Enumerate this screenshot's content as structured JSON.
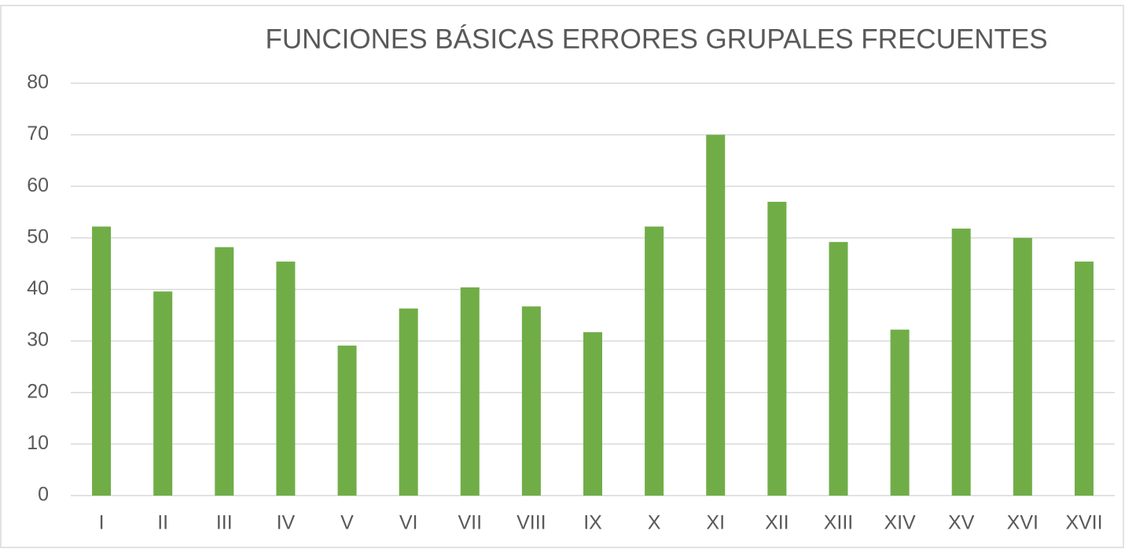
{
  "chart_data": {
    "type": "bar",
    "title": "FUNCIONES BÁSICAS ERRORES GRUPALES FRECUENTES",
    "categories": [
      "I",
      "II",
      "III",
      "IV",
      "V",
      "VI",
      "VII",
      "VIII",
      "IX",
      "X",
      "XI",
      "XII",
      "XIII",
      "XIV",
      "XV",
      "XVI",
      "XVII"
    ],
    "values": [
      52.2,
      39.6,
      48.2,
      45.4,
      29.1,
      36.3,
      40.4,
      36.7,
      31.7,
      52.2,
      70,
      57,
      49.2,
      32.2,
      51.8,
      50,
      45.4
    ],
    "color": "#70ad47",
    "ylim": [
      0,
      80
    ],
    "yticks": [
      0,
      10,
      20,
      30,
      40,
      50,
      60,
      70,
      80
    ],
    "grid": true
  }
}
